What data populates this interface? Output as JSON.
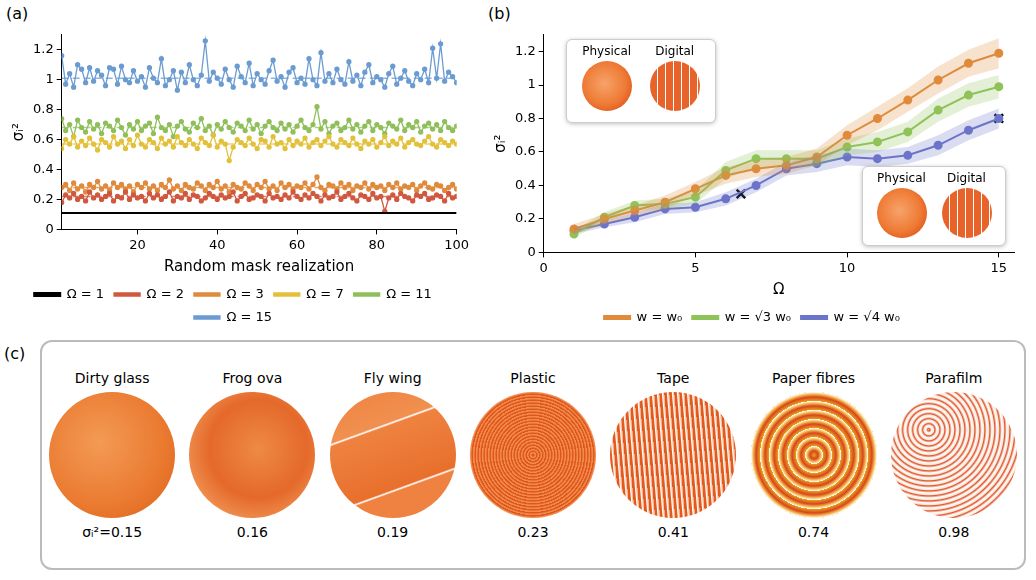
{
  "chart_data": [
    {
      "panel": "(a)",
      "type": "line",
      "x_label": "Random mask realization",
      "y_label": "σᵢ²",
      "x": [
        1,
        2,
        3,
        4,
        5,
        6,
        7,
        8,
        9,
        10,
        11,
        12,
        13,
        14,
        15,
        16,
        17,
        18,
        19,
        20,
        21,
        22,
        23,
        24,
        25,
        26,
        27,
        28,
        29,
        30,
        31,
        32,
        33,
        34,
        35,
        36,
        37,
        38,
        39,
        40,
        41,
        42,
        43,
        44,
        45,
        46,
        47,
        48,
        49,
        50,
        51,
        52,
        53,
        54,
        55,
        56,
        57,
        58,
        59,
        60,
        61,
        62,
        63,
        64,
        65,
        66,
        67,
        68,
        69,
        70,
        71,
        72,
        73,
        74,
        75,
        76,
        77,
        78,
        79,
        80,
        81,
        82,
        83,
        84,
        85,
        86,
        87,
        88,
        89,
        90,
        91,
        92,
        93,
        94,
        95,
        96,
        97,
        98,
        99,
        100
      ],
      "xlim": [
        1,
        100
      ],
      "xticks": [
        20,
        40,
        60,
        80,
        100
      ],
      "ylim": [
        0,
        1.3
      ],
      "yticks": [
        0,
        0.2,
        0.4,
        0.6,
        0.8,
        1,
        1.2
      ],
      "grid": false,
      "legend": "bottom",
      "marker": "circle",
      "series": [
        {
          "name": "Ω = 1",
          "color": "#000000",
          "marker": "none",
          "mean": 0.11,
          "values": [
            0.11,
            0.11,
            0.11,
            0.11,
            0.11,
            0.11,
            0.11,
            0.11,
            0.11,
            0.11,
            0.11,
            0.11,
            0.11,
            0.11,
            0.11,
            0.11,
            0.11,
            0.11,
            0.11,
            0.11,
            0.11,
            0.11,
            0.11,
            0.11,
            0.11,
            0.11,
            0.11,
            0.11,
            0.11,
            0.11,
            0.11,
            0.11,
            0.11,
            0.11,
            0.11,
            0.11,
            0.11,
            0.11,
            0.11,
            0.11,
            0.11,
            0.11,
            0.11,
            0.11,
            0.11,
            0.11,
            0.11,
            0.11,
            0.11,
            0.11,
            0.11,
            0.11,
            0.11,
            0.11,
            0.11,
            0.11,
            0.11,
            0.11,
            0.11,
            0.11,
            0.11,
            0.11,
            0.11,
            0.11,
            0.11,
            0.11,
            0.11,
            0.11,
            0.11,
            0.11,
            0.11,
            0.11,
            0.11,
            0.11,
            0.11,
            0.11,
            0.11,
            0.11,
            0.11,
            0.11,
            0.11,
            0.11,
            0.11,
            0.11,
            0.11,
            0.11,
            0.11,
            0.11,
            0.11,
            0.11,
            0.11,
            0.11,
            0.11,
            0.11,
            0.11,
            0.11,
            0.11,
            0.11,
            0.11,
            0.11
          ]
        },
        {
          "name": "Ω = 2",
          "color": "#d0583f",
          "mean": 0.22,
          "values": [
            0.18,
            0.23,
            0.21,
            0.24,
            0.2,
            0.22,
            0.19,
            0.25,
            0.21,
            0.23,
            0.2,
            0.22,
            0.24,
            0.19,
            0.22,
            0.21,
            0.25,
            0.2,
            0.23,
            0.21,
            0.22,
            0.19,
            0.24,
            0.21,
            0.23,
            0.2,
            0.22,
            0.25,
            0.19,
            0.22,
            0.21,
            0.24,
            0.2,
            0.23,
            0.22,
            0.19,
            0.21,
            0.24,
            0.22,
            0.2,
            0.23,
            0.21,
            0.22,
            0.25,
            0.19,
            0.22,
            0.24,
            0.2,
            0.21,
            0.23,
            0.22,
            0.19,
            0.24,
            0.21,
            0.22,
            0.2,
            0.23,
            0.21,
            0.25,
            0.22,
            0.2,
            0.23,
            0.21,
            0.24,
            0.22,
            0.19,
            0.23,
            0.21,
            0.22,
            0.25,
            0.2,
            0.22,
            0.24,
            0.21,
            0.19,
            0.23,
            0.22,
            0.2,
            0.24,
            0.21,
            0.22,
            0.12,
            0.21,
            0.23,
            0.2,
            0.24,
            0.22,
            0.21,
            0.19,
            0.23,
            0.22,
            0.24,
            0.2,
            0.21,
            0.23,
            0.22,
            0.19,
            0.24,
            0.21,
            0.22
          ]
        },
        {
          "name": "Ω = 3",
          "color": "#e08a3c",
          "mean": 0.28,
          "values": [
            0.28,
            0.3,
            0.26,
            0.31,
            0.27,
            0.29,
            0.25,
            0.3,
            0.28,
            0.32,
            0.27,
            0.29,
            0.26,
            0.31,
            0.28,
            0.3,
            0.27,
            0.29,
            0.25,
            0.3,
            0.28,
            0.31,
            0.27,
            0.29,
            0.26,
            0.3,
            0.28,
            0.33,
            0.27,
            0.29,
            0.26,
            0.3,
            0.28,
            0.27,
            0.31,
            0.29,
            0.26,
            0.3,
            0.28,
            0.32,
            0.27,
            0.29,
            0.25,
            0.3,
            0.28,
            0.27,
            0.31,
            0.29,
            0.26,
            0.3,
            0.28,
            0.32,
            0.27,
            0.29,
            0.26,
            0.31,
            0.28,
            0.3,
            0.27,
            0.29,
            0.28,
            0.31,
            0.27,
            0.3,
            0.35,
            0.28,
            0.26,
            0.3,
            0.29,
            0.27,
            0.31,
            0.28,
            0.3,
            0.26,
            0.29,
            0.28,
            0.31,
            0.27,
            0.3,
            0.28,
            0.29,
            0.26,
            0.3,
            0.28,
            0.31,
            0.27,
            0.29,
            0.28,
            0.3,
            0.26,
            0.29,
            0.31,
            0.28,
            0.27,
            0.3,
            0.29,
            0.26,
            0.28,
            0.3,
            0.27
          ]
        },
        {
          "name": "Ω = 7",
          "color": "#e3c03a",
          "mean": 0.57,
          "values": [
            0.54,
            0.6,
            0.57,
            0.62,
            0.55,
            0.59,
            0.56,
            0.61,
            0.57,
            0.53,
            0.6,
            0.58,
            0.55,
            0.62,
            0.57,
            0.59,
            0.54,
            0.6,
            0.56,
            0.63,
            0.57,
            0.55,
            0.6,
            0.58,
            0.54,
            0.61,
            0.57,
            0.59,
            0.55,
            0.62,
            0.58,
            0.56,
            0.6,
            0.57,
            0.54,
            0.61,
            0.58,
            0.56,
            0.63,
            0.55,
            0.59,
            0.57,
            0.46,
            0.55,
            0.6,
            0.58,
            0.56,
            0.61,
            0.57,
            0.54,
            0.6,
            0.59,
            0.55,
            0.62,
            0.57,
            0.58,
            0.54,
            0.6,
            0.56,
            0.59,
            0.57,
            0.61,
            0.55,
            0.58,
            0.6,
            0.56,
            0.59,
            0.62,
            0.57,
            0.55,
            0.6,
            0.58,
            0.56,
            0.61,
            0.57,
            0.54,
            0.59,
            0.57,
            0.6,
            0.55,
            0.58,
            0.62,
            0.56,
            0.59,
            0.57,
            0.61,
            0.55,
            0.58,
            0.6,
            0.57,
            0.56,
            0.59,
            0.62,
            0.57,
            0.55,
            0.6,
            0.58,
            0.56,
            0.59,
            0.57
          ]
        },
        {
          "name": "Ω = 11",
          "color": "#8fbf5a",
          "mean": 0.68,
          "values": [
            0.74,
            0.66,
            0.7,
            0.62,
            0.73,
            0.68,
            0.65,
            0.72,
            0.67,
            0.7,
            0.64,
            0.71,
            0.69,
            0.66,
            0.73,
            0.68,
            0.63,
            0.7,
            0.67,
            0.72,
            0.66,
            0.69,
            0.71,
            0.64,
            0.75,
            0.68,
            0.66,
            0.7,
            0.62,
            0.69,
            0.72,
            0.67,
            0.65,
            0.71,
            0.68,
            0.74,
            0.66,
            0.69,
            0.63,
            0.7,
            0.67,
            0.72,
            0.68,
            0.65,
            0.71,
            0.69,
            0.66,
            0.73,
            0.67,
            0.7,
            0.64,
            0.69,
            0.72,
            0.68,
            0.66,
            0.71,
            0.67,
            0.7,
            0.65,
            0.69,
            0.73,
            0.68,
            0.66,
            0.7,
            0.82,
            0.67,
            0.72,
            0.64,
            0.69,
            0.71,
            0.66,
            0.68,
            0.73,
            0.67,
            0.7,
            0.65,
            0.69,
            0.72,
            0.66,
            0.7,
            0.68,
            0.64,
            0.71,
            0.69,
            0.67,
            0.73,
            0.66,
            0.7,
            0.68,
            0.72,
            0.65,
            0.69,
            0.71,
            0.67,
            0.7,
            0.66,
            0.72,
            0.68,
            0.66,
            0.69
          ]
        },
        {
          "name": "Ω = 15",
          "color": "#6a9bd1",
          "mean": 1.01,
          "values": [
            1.16,
            0.97,
            1.04,
            0.95,
            1.1,
            1.07,
            0.98,
            1.08,
            0.99,
            1.06,
            1.03,
            0.96,
            1.08,
            1.07,
            0.97,
            1.09,
            1.0,
            0.98,
            1.06,
            0.99,
            1.02,
            0.95,
            1.08,
            1.01,
            0.98,
            1.14,
            0.96,
            1.0,
            1.06,
            0.93,
            1.05,
            0.98,
            1.1,
            1.0,
            0.96,
            1.03,
            1.26,
            0.99,
            1.05,
            1.01,
            0.97,
            1.07,
            1.0,
            0.95,
            1.09,
            1.02,
            0.98,
            1.11,
            0.96,
            1.04,
            1.0,
            0.97,
            1.06,
            1.13,
            0.99,
            1.02,
            0.95,
            1.05,
            1.08,
            0.98,
            1.01,
            0.97,
            1.14,
            1.0,
            0.96,
            1.18,
            0.99,
            1.04,
            0.98,
            1.07,
            1.0,
            0.97,
            1.12,
            0.99,
            1.03,
            0.96,
            1.05,
            1.1,
            0.98,
            1.02,
            1.0,
            0.95,
            1.04,
            1.09,
            0.97,
            1.01,
            1.06,
            0.99,
            0.96,
            1.04,
            1.0,
            1.07,
            0.98,
            1.21,
            1.01,
            1.24,
            0.99,
            1.05,
            1.02,
            0.98
          ]
        }
      ]
    },
    {
      "panel": "(b)",
      "type": "line",
      "x_label": "Ω",
      "y_label": "σᵢ²",
      "x": [
        1,
        2,
        3,
        4,
        5,
        6,
        7,
        8,
        9,
        10,
        11,
        12,
        13,
        14,
        15
      ],
      "xlim": [
        0,
        15.5
      ],
      "xticks": [
        0,
        5,
        10,
        15
      ],
      "ylim": [
        0,
        1.3
      ],
      "yticks": [
        0,
        0.2,
        0.4,
        0.6,
        0.8,
        1,
        1.2
      ],
      "grid": false,
      "legend": "bottom",
      "marker": "circle",
      "series": [
        {
          "name": "w = w₀",
          "color": "#e08a3c",
          "values": [
            0.14,
            0.2,
            0.25,
            0.3,
            0.38,
            0.46,
            0.5,
            0.52,
            0.57,
            0.7,
            0.8,
            0.91,
            1.03,
            1.13,
            1.19
          ],
          "std": [
            0.03,
            0.03,
            0.03,
            0.04,
            0.04,
            0.05,
            0.05,
            0.05,
            0.05,
            0.06,
            0.07,
            0.07,
            0.08,
            0.08,
            0.09
          ]
        },
        {
          "name": "w = √3 w₀",
          "color": "#8fc35a",
          "values": [
            0.11,
            0.21,
            0.28,
            0.29,
            0.33,
            0.49,
            0.56,
            0.56,
            0.56,
            0.63,
            0.66,
            0.72,
            0.85,
            0.94,
            0.99
          ],
          "std": [
            0.02,
            0.03,
            0.03,
            0.03,
            0.04,
            0.05,
            0.05,
            0.05,
            0.05,
            0.05,
            0.06,
            0.06,
            0.07,
            0.07,
            0.07
          ]
        },
        {
          "name": "w = √4 w₀",
          "color": "#6b75c9",
          "values": [
            0.13,
            0.17,
            0.21,
            0.26,
            0.27,
            0.32,
            0.4,
            0.5,
            0.53,
            0.57,
            0.56,
            0.58,
            0.64,
            0.73,
            0.8
          ],
          "std": [
            0.02,
            0.02,
            0.03,
            0.03,
            0.03,
            0.04,
            0.04,
            0.04,
            0.05,
            0.05,
            0.05,
            0.05,
            0.06,
            0.06,
            0.06
          ]
        }
      ],
      "insets": [
        {
          "labels": [
            "Physical",
            "Digital"
          ],
          "x": 6.5,
          "y": 0.35
        },
        {
          "labels": [
            "Physical",
            "Digital"
          ],
          "x": 15,
          "y": 0.8
        }
      ]
    }
  ],
  "gallery": {
    "panel": "(c)",
    "samples": [
      {
        "name": "Dirty glass",
        "value": 0.15,
        "label": "σᵢ²=0.15"
      },
      {
        "name": "Frog ova",
        "value": 0.16
      },
      {
        "name": "Fly wing",
        "value": 0.19
      },
      {
        "name": "Plastic",
        "value": 0.23
      },
      {
        "name": "Tape",
        "value": 0.41
      },
      {
        "name": "Paper fibres",
        "value": 0.74
      },
      {
        "name": "Parafilm",
        "value": 0.98
      }
    ]
  }
}
